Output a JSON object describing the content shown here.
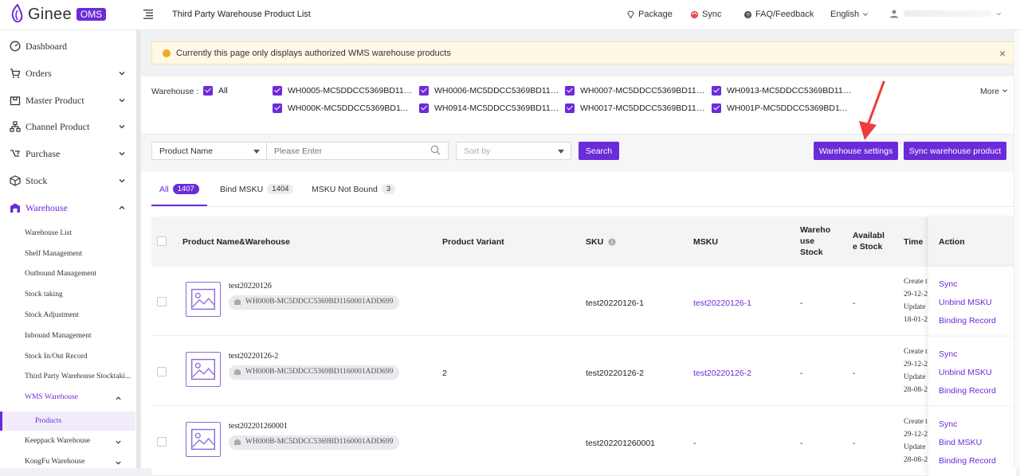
{
  "topbar": {
    "brand": "Ginee",
    "product": "OMS",
    "page_title": "Third Party Warehouse Product List",
    "package": "Package",
    "sync": "Sync",
    "faq": "FAQ/Feedback",
    "language": "English"
  },
  "sidebar": {
    "main": [
      {
        "label": "Dashboard",
        "icon": "dashboard-icon"
      },
      {
        "label": "Orders",
        "icon": "cart-icon"
      },
      {
        "label": "Master Product",
        "icon": "box-icon"
      },
      {
        "label": "Channel Product",
        "icon": "channel-icon"
      },
      {
        "label": "Purchase",
        "icon": "purchase-icon"
      },
      {
        "label": "Stock",
        "icon": "stock-icon"
      },
      {
        "label": "Warehouse",
        "icon": "warehouse-icon"
      }
    ],
    "sub": [
      "Warehouse List",
      "Shelf Management",
      "Outbound Management",
      "Stock taking",
      "Stock Adjustment",
      "Inbound Management",
      "Stock In/Out Record",
      "Third Party Warehouse Stocktaki...",
      "WMS Warehouse",
      "Products",
      "Keeppack Warehouse",
      "KongFu Warehouse"
    ]
  },
  "alert": {
    "text": "Currently this page only displays authorized WMS warehouse products"
  },
  "warehouse_filter": {
    "label": "Warehouse :",
    "all": "All",
    "items": [
      "WH0005-MC5DDCC5369BD1160...",
      "WH0006-MC5DDCC5369BD1160...",
      "WH0007-MC5DDCC5369BD1160...",
      "WH0913-MC5DDCC5369BD1160...",
      "WH000K-MC5DDCC5369BD1160...",
      "WH0914-MC5DDCC5369BD1160...",
      "WH0017-MC5DDCC5369BD1160...",
      "WH001P-MC5DDCC5369BD1160..."
    ],
    "more": "More"
  },
  "search": {
    "field": "Product Name",
    "placeholder": "Please Enter",
    "sort_placeholder": "Sort by",
    "search_btn": "Search",
    "warehouse_settings_btn": "Warehouse settings",
    "sync_btn": "Sync warehouse product"
  },
  "tabs": [
    {
      "label": "All",
      "count": "1407"
    },
    {
      "label": "Bind MSKU",
      "count": "1404"
    },
    {
      "label": "MSKU Not Bound",
      "count": "3"
    }
  ],
  "table": {
    "headers": {
      "product": "Product Name&Warehouse",
      "variant": "Product Variant",
      "sku": "SKU",
      "msku": "MSKU",
      "warehouse_stock": "Wareho use Stock",
      "available_stock": "Availabl e Stock",
      "time": "Time",
      "action": "Action"
    },
    "rows": [
      {
        "name": "test20220126",
        "warehouse": "WH000B-MC5DDCC5369BD1160001ADD699",
        "variant": "",
        "sku": "test20220126-1",
        "msku": "test20220126-1",
        "warehouse_stock": "-",
        "available_stock": "-",
        "time": [
          "Create t",
          "29-12-2",
          "Update",
          "18-01-2"
        ],
        "actions": [
          "Sync",
          "Unbind MSKU",
          "Binding Record"
        ]
      },
      {
        "name": "test20220126-2",
        "warehouse": "WH000B-MC5DDCC5369BD1160001ADD699",
        "variant": "2",
        "sku": "test20220126-2",
        "msku": "test20220126-2",
        "warehouse_stock": "-",
        "available_stock": "-",
        "time": [
          "Create t",
          "29-12-2",
          "Update",
          "28-08-2"
        ],
        "actions": [
          "Sync",
          "Unbind MSKU",
          "Binding Record"
        ]
      },
      {
        "name": "test202201260001",
        "warehouse": "WH000B-MC5DDCC5369BD1160001ADD699",
        "variant": "",
        "sku": "test202201260001",
        "msku": "-",
        "warehouse_stock": "-",
        "available_stock": "-",
        "time": [
          "Create t",
          "29-12-2",
          "Update",
          "28-08-2"
        ],
        "actions": [
          "Sync",
          "Bind MSKU",
          "Binding Record"
        ]
      }
    ]
  },
  "colors": {
    "accent": "#6c2bd9",
    "alert_bg": "#fff8e6",
    "arrow": "#ee3b3b"
  }
}
